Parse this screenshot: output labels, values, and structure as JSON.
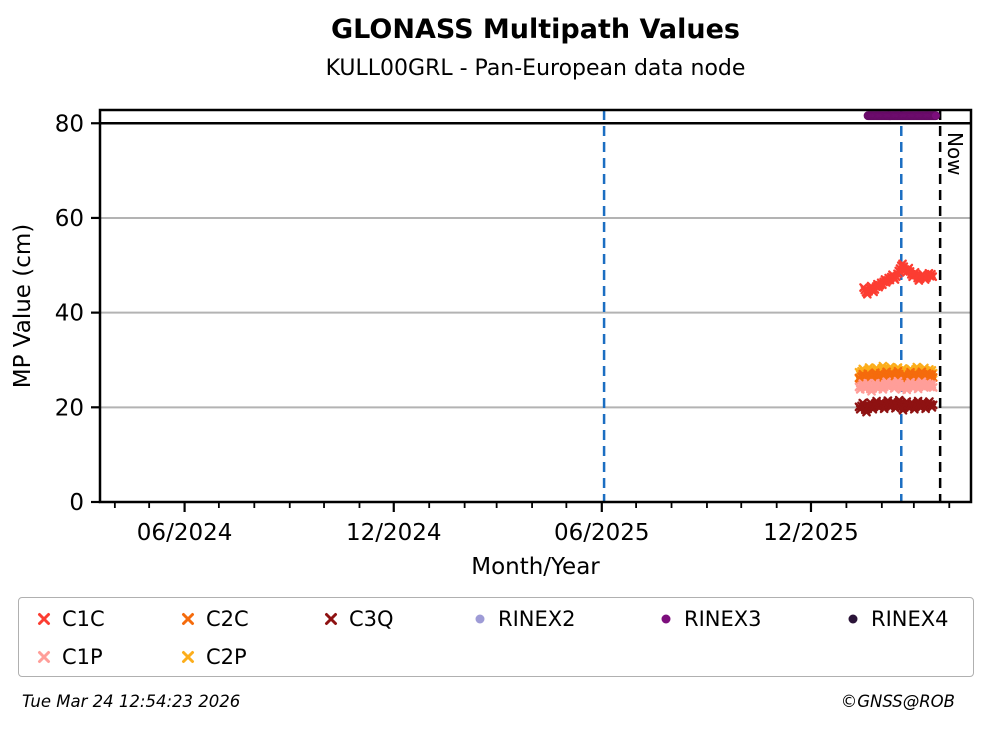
{
  "header": {
    "title": "GLONASS Multipath Values",
    "subtitle": "KULL00GRL - Pan-European data node"
  },
  "footer": {
    "timestamp": "Tue Mar 24 12:54:23 2026",
    "copyright": "©GNSS@ROB"
  },
  "chart_data": {
    "type": "scatter",
    "title": "GLONASS Multipath Values",
    "subtitle": "KULL00GRL - Pan-European data node",
    "xlabel": "Month/Year",
    "ylabel": "MP Value (cm)",
    "ylim": [
      0,
      82.8
    ],
    "y_ticks": [
      0,
      20,
      40,
      60,
      80
    ],
    "x_domain": [
      "2024-03-19",
      "2026-04-20"
    ],
    "x_major_ticks": [
      {
        "date": "2024-06-01",
        "label": "06/2024"
      },
      {
        "date": "2024-12-01",
        "label": "12/2024"
      },
      {
        "date": "2025-06-01",
        "label": "06/2025"
      },
      {
        "date": "2025-12-01",
        "label": "12/2025"
      }
    ],
    "x_minor_tick_interval": "1 month",
    "grid": {
      "y_values": [
        20,
        40,
        60
      ],
      "color": "#b3b3b3"
    },
    "threshold_line": {
      "y": 80,
      "color": "#000000"
    },
    "vlines": [
      {
        "date": "2025-06-03",
        "style": "dashed",
        "color": "#1b6ec2",
        "label": ""
      },
      {
        "date": "2026-02-18",
        "style": "dashed",
        "color": "#1b6ec2",
        "label": ""
      },
      {
        "date": "2026-03-24",
        "style": "dashed",
        "color": "#000000",
        "label": "Now"
      }
    ],
    "series": [
      {
        "name": "C1C",
        "marker": "x",
        "color": "#fc3d32",
        "x_start": "2026-01-16",
        "x_step_days": 1.1,
        "values": [
          45.3,
          44.8,
          44.3,
          43.9,
          44.5,
          45.1,
          45.6,
          45.0,
          44.4,
          44.9,
          45.5,
          46.0,
          45.4,
          45.8,
          46.3,
          45.9,
          46.5,
          47.0,
          46.4,
          46.8,
          47.3,
          46.9,
          47.5,
          48.0,
          47.4,
          47.0,
          47.6,
          48.2,
          48.8,
          49.3,
          49.9,
          50.3,
          49.7,
          49.1,
          48.5,
          48.9,
          49.4,
          48.7,
          48.1,
          47.6,
          48.0,
          48.5,
          47.9,
          47.3,
          46.8,
          47.2,
          47.7,
          48.1,
          47.5,
          47.0,
          47.4,
          47.9,
          48.3,
          47.7,
          48.1,
          47.6
        ]
      },
      {
        "name": "C2P",
        "marker": "x",
        "color": "#fcae1c",
        "x_start": "2026-01-12",
        "x_step_days": 1.1,
        "values": [
          27.4,
          26.9,
          27.6,
          28.1,
          27.5,
          26.8,
          27.3,
          27.9,
          28.4,
          27.8,
          27.2,
          26.7,
          27.3,
          27.8,
          28.3,
          27.7,
          27.1,
          27.6,
          28.2,
          28.7,
          28.1,
          27.5,
          27.0,
          27.5,
          28.0,
          28.5,
          27.9,
          27.3,
          26.8,
          27.4,
          27.9,
          28.4,
          27.8,
          27.2,
          27.7,
          28.2,
          27.6,
          27.0,
          26.5,
          27.1,
          27.6,
          28.1,
          27.5,
          26.9,
          27.4,
          28.0,
          28.5,
          27.9,
          27.3,
          26.8,
          27.3,
          27.9,
          28.3,
          27.7,
          27.1,
          27.6,
          28.0,
          27.4,
          27.8,
          27.2
        ]
      },
      {
        "name": "C2C",
        "marker": "x",
        "color": "#f56b0c",
        "x_start": "2026-01-12",
        "x_step_days": 1.1,
        "values": [
          26.2,
          25.8,
          26.5,
          27.0,
          26.4,
          25.9,
          26.6,
          27.1,
          26.7,
          26.1,
          25.7,
          26.3,
          26.9,
          27.3,
          26.8,
          26.2,
          26.7,
          27.2,
          26.6,
          26.0,
          26.5,
          27.0,
          27.5,
          26.9,
          26.3,
          26.8,
          27.3,
          26.7,
          26.1,
          26.6,
          27.1,
          27.6,
          27.0,
          26.4,
          25.9,
          26.5,
          27.0,
          26.4,
          25.8,
          26.3,
          26.9,
          27.4,
          26.8,
          26.2,
          26.7,
          27.2,
          26.6,
          26.0,
          26.5,
          27.1,
          27.5,
          26.9,
          26.3,
          26.8,
          27.2,
          26.6,
          27.0,
          26.4,
          26.9,
          26.3
        ]
      },
      {
        "name": "C1P",
        "marker": "x",
        "color": "#ff9e99",
        "x_start": "2026-01-12",
        "x_step_days": 1.1,
        "values": [
          24.3,
          23.8,
          24.5,
          25.0,
          24.4,
          23.9,
          24.6,
          25.1,
          24.5,
          23.9,
          23.4,
          24.0,
          24.6,
          25.1,
          24.5,
          23.9,
          24.4,
          25.0,
          24.4,
          23.8,
          24.3,
          24.9,
          25.4,
          24.8,
          24.2,
          24.7,
          25.2,
          24.6,
          24.0,
          24.5,
          25.0,
          25.5,
          24.9,
          24.3,
          23.8,
          24.4,
          24.9,
          24.3,
          23.7,
          24.2,
          24.8,
          25.3,
          24.7,
          24.1,
          24.6,
          25.1,
          24.5,
          23.9,
          24.4,
          25.0,
          25.4,
          24.8,
          24.2,
          24.7,
          25.1,
          24.5,
          24.9,
          24.3,
          24.8,
          24.2
        ]
      },
      {
        "name": "C3Q",
        "marker": "x",
        "color": "#8e1212",
        "x_start": "2026-01-12",
        "x_step_days": 1.1,
        "values": [
          20.1,
          19.6,
          20.3,
          20.9,
          20.2,
          19.5,
          19.0,
          19.7,
          20.4,
          21.0,
          20.3,
          19.6,
          20.2,
          20.8,
          21.3,
          20.6,
          19.9,
          20.5,
          21.1,
          20.4,
          19.7,
          20.3,
          20.9,
          21.4,
          20.7,
          20.0,
          20.6,
          21.2,
          20.5,
          19.8,
          20.4,
          21.0,
          21.5,
          20.8,
          20.1,
          19.4,
          20.0,
          20.7,
          21.2,
          20.5,
          19.8,
          20.4,
          21.0,
          20.3,
          19.6,
          20.2,
          20.8,
          21.3,
          20.6,
          19.9,
          20.5,
          21.1,
          20.4,
          19.7,
          20.3,
          20.8,
          21.2,
          20.6,
          20.0,
          20.5
        ]
      },
      {
        "name": "RINEX3",
        "marker": "dot",
        "color": "#7c0e7c",
        "band": {
          "start": "2026-01-20",
          "end": "2026-03-20",
          "value": 81.6,
          "points": 60
        }
      }
    ],
    "legend": [
      {
        "label": "C1C",
        "marker": "x",
        "color": "#fc3d32",
        "row": 0,
        "col": 0
      },
      {
        "label": "C2C",
        "marker": "x",
        "color": "#f56b0c",
        "row": 0,
        "col": 1
      },
      {
        "label": "C3Q",
        "marker": "x",
        "color": "#8e1212",
        "row": 0,
        "col": 2
      },
      {
        "label": "RINEX2",
        "marker": "dot",
        "color": "#9e9bd6",
        "row": 0,
        "col": 3
      },
      {
        "label": "RINEX3",
        "marker": "dot",
        "color": "#7c0e7c",
        "row": 0,
        "col": 4
      },
      {
        "label": "RINEX4",
        "marker": "dot",
        "color": "#2b1438",
        "row": 0,
        "col": 5
      },
      {
        "label": "C1P",
        "marker": "x",
        "color": "#ff9e99",
        "row": 1,
        "col": 0
      },
      {
        "label": "C2P",
        "marker": "x",
        "color": "#fcae1c",
        "row": 1,
        "col": 1
      }
    ],
    "legend_position": "bottom"
  }
}
